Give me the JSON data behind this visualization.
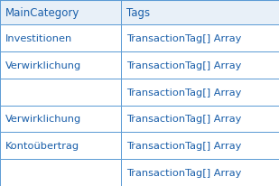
{
  "header": [
    "MainCategory",
    "Tags"
  ],
  "rows": [
    [
      "Investitionen",
      "TransactionTag[] Array"
    ],
    [
      "Verwirklichung",
      "TransactionTag[] Array"
    ],
    [
      "",
      "TransactionTag[] Array"
    ],
    [
      "Verwirklichung",
      "TransactionTag[] Array"
    ],
    [
      "Kontoübertrag",
      "TransactionTag[] Array"
    ],
    [
      "",
      "TransactionTag[] Array"
    ]
  ],
  "header_bg": "#e8f0f8",
  "header_text_color": "#1a5faa",
  "row_bg": "#ffffff",
  "row_text_color": "#1a5faa",
  "border_color": "#5b9bd5",
  "col_split": 0.435,
  "header_fontsize": 8.5,
  "row_fontsize": 8.2,
  "outer_border_color": "#5b9bd5",
  "top_border_color": "#5b9bd5"
}
